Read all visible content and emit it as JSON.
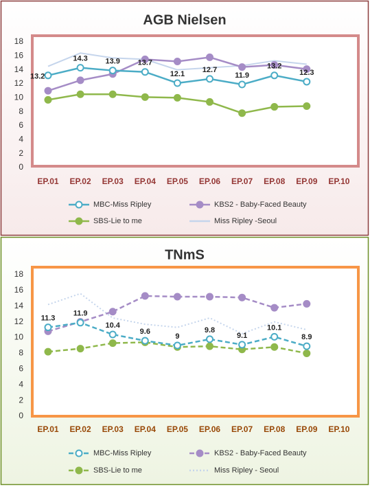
{
  "chart_data": [
    {
      "type": "line",
      "title": "AGB Nielsen",
      "categories": [
        "EP.01",
        "EP.02",
        "EP.03",
        "EP.04",
        "EP.05",
        "EP.06",
        "EP.07",
        "EP.08",
        "EP.09",
        "EP.10"
      ],
      "ylim": [
        0,
        18
      ],
      "yticks": [
        0,
        2,
        4,
        6,
        8,
        10,
        12,
        14,
        16,
        18
      ],
      "frame_color": "#8b3a3a",
      "plot_border_color": "#d48a8a",
      "category_color": "#943634",
      "series": [
        {
          "name": "MBC-Miss Ripley",
          "color": "#4bacc6",
          "style": "solid",
          "marker": "open-circle",
          "data_labels": true,
          "values": [
            13.2,
            14.3,
            13.9,
            13.7,
            12.1,
            12.7,
            11.9,
            13.2,
            12.3,
            null
          ]
        },
        {
          "name": "KBS2 - Baby-Faced Beauty",
          "color": "#a58cc6",
          "style": "solid",
          "marker": "circle",
          "values": [
            11.0,
            12.5,
            13.4,
            15.5,
            15.2,
            15.8,
            14.4,
            14.7,
            14.1,
            null
          ]
        },
        {
          "name": "SBS-Lie to me",
          "color": "#8fb84b",
          "style": "solid",
          "marker": "circle",
          "values": [
            9.7,
            10.5,
            10.5,
            10.1,
            10.0,
            9.4,
            7.8,
            8.7,
            8.8,
            null
          ]
        },
        {
          "name": "Miss Ripley -Seoul",
          "color": "#c5d5ec",
          "style": "solid",
          "marker": "none",
          "values": [
            14.5,
            16.4,
            15.7,
            15.5,
            14.0,
            14.3,
            14.6,
            15.3,
            14.8,
            null
          ]
        }
      ]
    },
    {
      "type": "line",
      "title": "TNmS",
      "categories": [
        "EP.01",
        "EP.02",
        "EP.03",
        "EP.04",
        "EP.05",
        "EP.06",
        "EP.07",
        "EP.08",
        "EP.09",
        "EP.10"
      ],
      "ylim": [
        0,
        18
      ],
      "yticks": [
        0,
        2,
        4,
        6,
        8,
        10,
        12,
        14,
        16,
        18
      ],
      "frame_color": "#6b8e23",
      "plot_border_color": "#f79646",
      "category_color": "#984807",
      "series": [
        {
          "name": "MBC-Miss Ripley",
          "color": "#4bacc6",
          "style": "dashed",
          "marker": "open-circle",
          "data_labels": true,
          "values": [
            11.3,
            11.9,
            10.4,
            9.6,
            9,
            9.8,
            9.1,
            10.1,
            8.9,
            null
          ]
        },
        {
          "name": "KBS2 - Baby-Faced Beauty",
          "color": "#a58cc6",
          "style": "dashed",
          "marker": "circle",
          "values": [
            10.8,
            12.0,
            13.3,
            15.3,
            15.2,
            15.2,
            15.1,
            13.8,
            14.3,
            null
          ]
        },
        {
          "name": "SBS-Lie to me",
          "color": "#8fb84b",
          "style": "dashed",
          "marker": "circle",
          "values": [
            8.2,
            8.6,
            9.3,
            9.4,
            8.8,
            8.9,
            8.5,
            8.8,
            8.0,
            null
          ]
        },
        {
          "name": "Miss Ripley - Seoul",
          "color": "#c5d5ec",
          "style": "dotted",
          "marker": "none",
          "values": [
            14.2,
            15.6,
            12.5,
            11.7,
            11.3,
            12.5,
            10.5,
            12.0,
            11.0,
            null
          ]
        }
      ]
    }
  ]
}
